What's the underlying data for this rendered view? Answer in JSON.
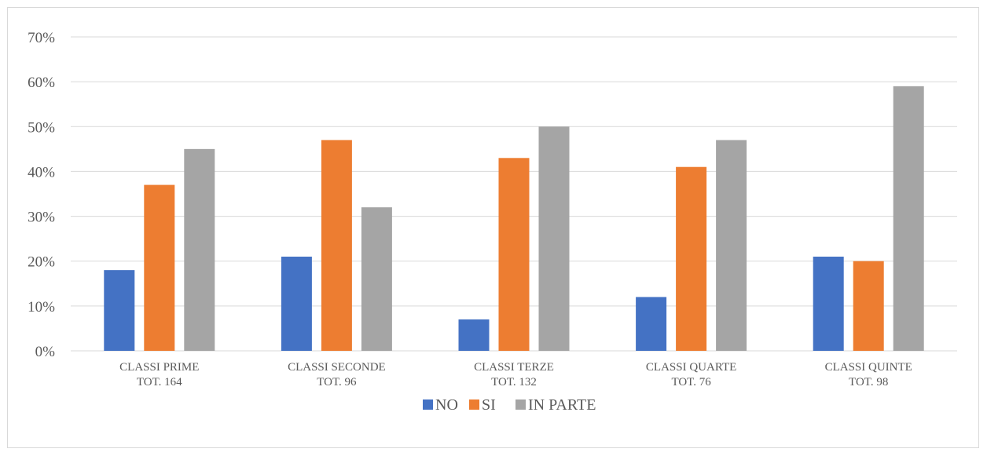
{
  "chart_data": {
    "type": "bar",
    "title": "",
    "xlabel": "",
    "ylabel": "",
    "categories": [
      [
        "CLASSI PRIME",
        "TOT. 164"
      ],
      [
        "CLASSI SECONDE",
        "TOT. 96"
      ],
      [
        "CLASSI TERZE",
        "TOT. 132"
      ],
      [
        "CLASSI QUARTE",
        "TOT. 76"
      ],
      [
        "CLASSI QUINTE",
        "TOT. 98"
      ]
    ],
    "series": [
      {
        "name": "NO",
        "color": "#4472c4",
        "values": [
          18,
          21,
          7,
          12,
          21
        ]
      },
      {
        "name": "SI",
        "color": "#ed7d31",
        "values": [
          37,
          47,
          43,
          41,
          20
        ]
      },
      {
        "name": "IN PARTE",
        "color": "#a5a5a5",
        "values": [
          45,
          32,
          50,
          47,
          59
        ]
      }
    ],
    "ylim": [
      0,
      70
    ],
    "yticks": [
      "0%",
      "10%",
      "20%",
      "30%",
      "40%",
      "50%",
      "60%",
      "70%"
    ],
    "grid": true,
    "legend_position": "bottom",
    "gridline_color": "#d9d9d9"
  }
}
